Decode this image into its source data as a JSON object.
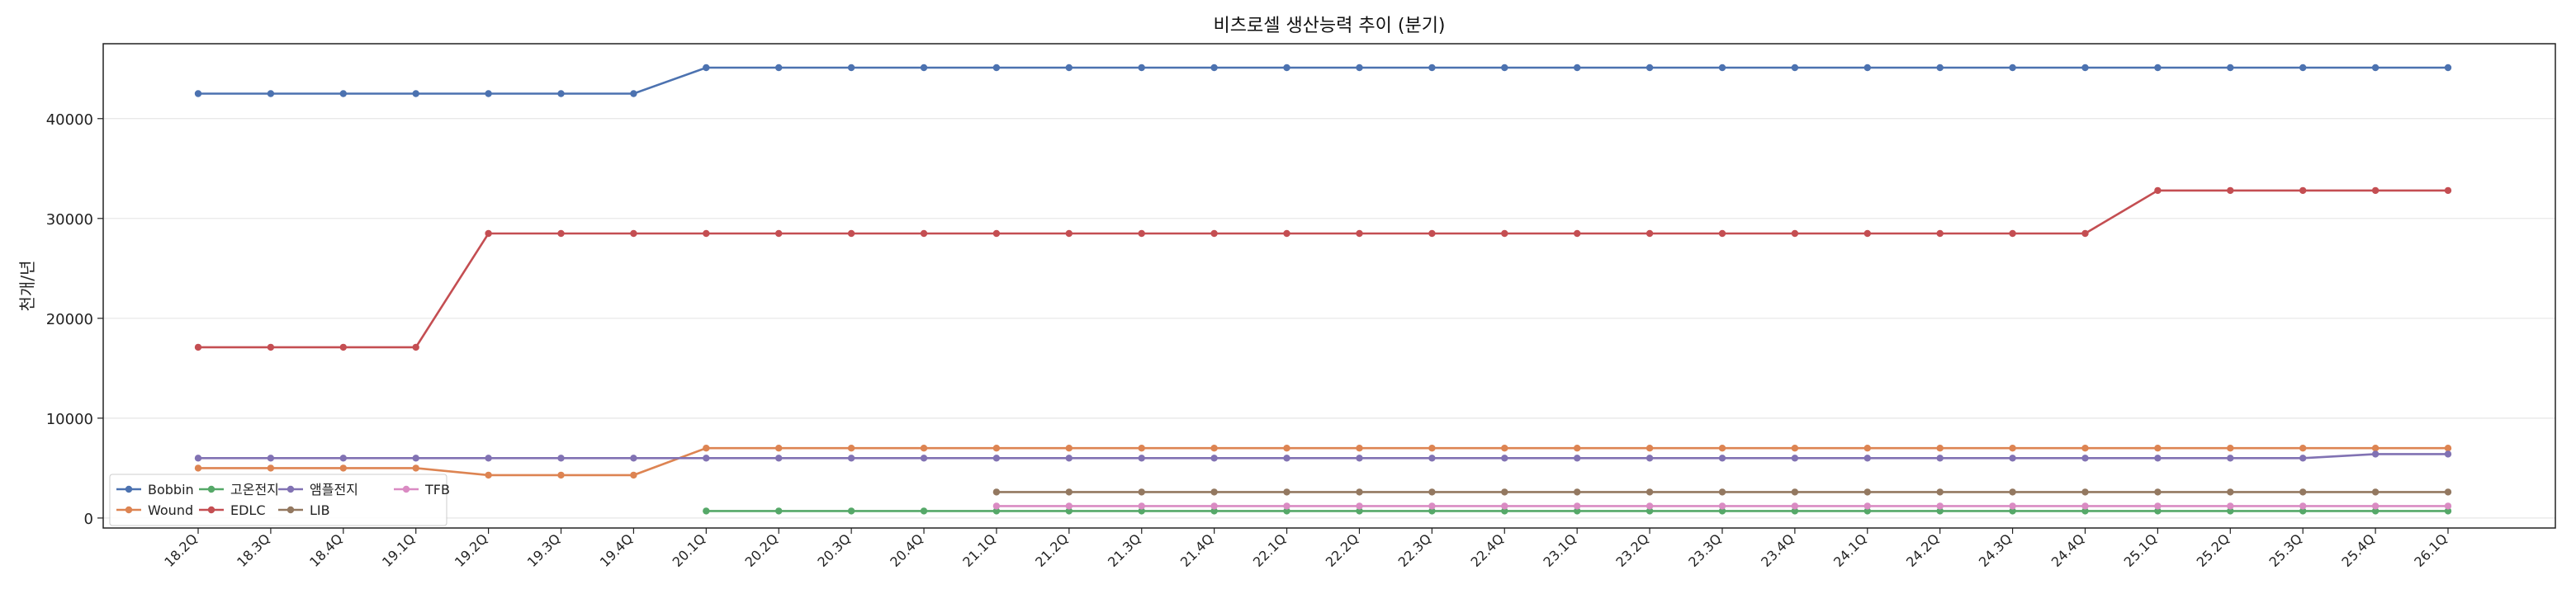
{
  "chart_data": {
    "type": "line",
    "title": "비츠로셀 생산능력 추이 (분기)",
    "xlabel": "",
    "ylabel": "천개/년",
    "ylim": [
      -1000,
      47500
    ],
    "yticks": [
      0,
      10000,
      20000,
      30000,
      40000
    ],
    "grid": "horizontal",
    "legend_position": "bottom-left",
    "categories": [
      "18.2Q",
      "18.3Q",
      "18.4Q",
      "19.1Q",
      "19.2Q",
      "19.3Q",
      "19.4Q",
      "20.1Q",
      "20.2Q",
      "20.3Q",
      "20.4Q",
      "21.1Q",
      "21.2Q",
      "21.3Q",
      "21.4Q",
      "22.1Q",
      "22.2Q",
      "22.3Q",
      "22.4Q",
      "23.1Q",
      "23.2Q",
      "23.3Q",
      "23.4Q",
      "24.1Q",
      "24.2Q",
      "24.3Q",
      "24.4Q",
      "25.1Q",
      "25.2Q",
      "25.3Q",
      "25.4Q",
      "26.1Q"
    ],
    "series": [
      {
        "name": "Bobbin",
        "color": "#4c72b0",
        "values": [
          42500,
          42500,
          42500,
          42500,
          42500,
          42500,
          42500,
          45100,
          45100,
          45100,
          45100,
          45100,
          45100,
          45100,
          45100,
          45100,
          45100,
          45100,
          45100,
          45100,
          45100,
          45100,
          45100,
          45100,
          45100,
          45100,
          45100,
          45100,
          45100,
          45100,
          45100,
          45100
        ]
      },
      {
        "name": "Wound",
        "color": "#dd8452",
        "values": [
          5000,
          5000,
          5000,
          5000,
          4300,
          4300,
          4300,
          7000,
          7000,
          7000,
          7000,
          7000,
          7000,
          7000,
          7000,
          7000,
          7000,
          7000,
          7000,
          7000,
          7000,
          7000,
          7000,
          7000,
          7000,
          7000,
          7000,
          7000,
          7000,
          7000,
          7000,
          7000
        ]
      },
      {
        "name": "고온전지",
        "color": "#55a868",
        "values": [
          null,
          null,
          null,
          null,
          null,
          null,
          null,
          700,
          700,
          700,
          700,
          700,
          700,
          700,
          700,
          700,
          700,
          700,
          700,
          700,
          700,
          700,
          700,
          700,
          700,
          700,
          700,
          700,
          700,
          700,
          700,
          700
        ]
      },
      {
        "name": "EDLC",
        "color": "#c44e52",
        "values": [
          17100,
          17100,
          17100,
          17100,
          28500,
          28500,
          28500,
          28500,
          28500,
          28500,
          28500,
          28500,
          28500,
          28500,
          28500,
          28500,
          28500,
          28500,
          28500,
          28500,
          28500,
          28500,
          28500,
          28500,
          28500,
          28500,
          28500,
          32800,
          32800,
          32800,
          32800,
          32800
        ]
      },
      {
        "name": "앰플전지",
        "color": "#8172b3",
        "values": [
          6000,
          6000,
          6000,
          6000,
          6000,
          6000,
          6000,
          6000,
          6000,
          6000,
          6000,
          6000,
          6000,
          6000,
          6000,
          6000,
          6000,
          6000,
          6000,
          6000,
          6000,
          6000,
          6000,
          6000,
          6000,
          6000,
          6000,
          6000,
          6000,
          6000,
          6400,
          6400
        ]
      },
      {
        "name": "LIB",
        "color": "#937860",
        "values": [
          null,
          null,
          null,
          null,
          null,
          null,
          null,
          null,
          null,
          null,
          null,
          2600,
          2600,
          2600,
          2600,
          2600,
          2600,
          2600,
          2600,
          2600,
          2600,
          2600,
          2600,
          2600,
          2600,
          2600,
          2600,
          2600,
          2600,
          2600,
          2600,
          2600
        ]
      },
      {
        "name": "TFB",
        "color": "#da8bc3",
        "values": [
          null,
          null,
          null,
          null,
          null,
          null,
          null,
          null,
          null,
          null,
          null,
          1200,
          1200,
          1200,
          1200,
          1200,
          1200,
          1200,
          1200,
          1200,
          1200,
          1200,
          1200,
          1200,
          1200,
          1200,
          1200,
          1200,
          1200,
          1200,
          1200,
          1200
        ]
      }
    ]
  }
}
